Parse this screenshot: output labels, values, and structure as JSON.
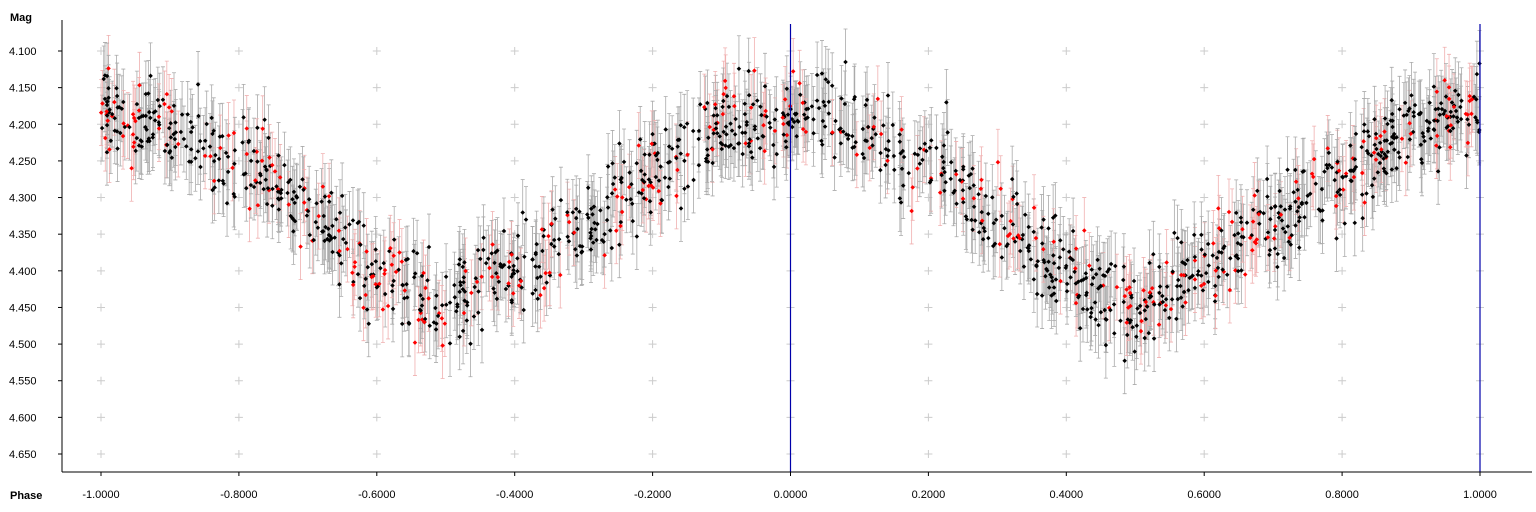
{
  "chart_data": {
    "type": "scatter",
    "title": "",
    "xlabel": "Phase",
    "ylabel": "Mag",
    "xlim": [
      -1.1,
      1.1
    ],
    "ylim": [
      4.675,
      4.075
    ],
    "y_inverted": true,
    "x_ticks": [
      "-1.0000",
      "-0.8000",
      "-0.6000",
      "-0.4000",
      "-0.2000",
      "0.0000",
      "0.2000",
      "0.4000",
      "0.6000",
      "0.8000",
      "1.0000"
    ],
    "x_tick_values": [
      -1.0,
      -0.8,
      -0.6,
      -0.4,
      -0.2,
      0.0,
      0.2,
      0.4,
      0.6,
      0.8,
      1.0
    ],
    "y_ticks": [
      "4.100",
      "4.150",
      "4.200",
      "4.250",
      "4.300",
      "4.350",
      "4.400",
      "4.450",
      "4.500",
      "4.550",
      "4.600",
      "4.650"
    ],
    "y_tick_values": [
      4.1,
      4.15,
      4.2,
      4.25,
      4.3,
      4.35,
      4.4,
      4.45,
      4.5,
      4.55,
      4.6,
      4.65
    ],
    "grid": "plus markers",
    "phase_markers": [
      0.0,
      1.0
    ],
    "error_bar": 0.045,
    "light_curve_model": {
      "description": "approximate shape of the folded light curve (phase, mean magnitude)",
      "phase": [
        -0.5,
        -0.4,
        -0.3,
        -0.2,
        -0.1,
        0.0,
        0.1,
        0.2,
        0.3,
        0.4,
        0.5
      ],
      "mag": [
        4.455,
        4.4,
        4.335,
        4.275,
        4.205,
        4.185,
        4.205,
        4.255,
        4.32,
        4.4,
        4.455
      ]
    },
    "series": [
      {
        "color": "#000000",
        "error_color": "#aaaaaa",
        "points": 1150
      },
      {
        "color": "#ff0000",
        "error_color": "#f0b0b0",
        "points": 330
      }
    ],
    "colors": {
      "axis": "#000000",
      "grid": "#cccccc",
      "phase_marker": "#0000aa"
    }
  }
}
